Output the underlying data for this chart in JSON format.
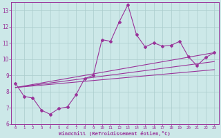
{
  "xlabel": "Windchill (Refroidissement éolien,°C)",
  "bg_color": "#cce8e8",
  "line_color": "#993399",
  "grid_color": "#aacccc",
  "axis_color": "#993399",
  "xlim": [
    -0.5,
    23.5
  ],
  "ylim": [
    6,
    13.5
  ],
  "xticks": [
    0,
    1,
    2,
    3,
    4,
    5,
    6,
    7,
    8,
    9,
    10,
    11,
    12,
    13,
    14,
    15,
    16,
    17,
    18,
    19,
    20,
    21,
    22,
    23
  ],
  "yticks": [
    6,
    7,
    8,
    9,
    10,
    11,
    12,
    13
  ],
  "main_x": [
    0,
    1,
    2,
    3,
    4,
    5,
    6,
    7,
    8,
    9,
    10,
    11,
    12,
    13,
    14,
    15,
    16,
    17,
    18,
    19,
    20,
    21,
    22,
    23
  ],
  "main_y": [
    8.5,
    7.7,
    7.6,
    6.85,
    6.6,
    6.95,
    7.05,
    7.8,
    8.8,
    9.0,
    11.2,
    11.1,
    12.3,
    13.35,
    11.5,
    10.75,
    11.0,
    10.8,
    10.85,
    11.1,
    10.15,
    9.6,
    10.1,
    10.4
  ],
  "trend1_x": [
    0,
    23
  ],
  "trend1_y": [
    8.25,
    10.4
  ],
  "trend2_x": [
    0,
    23
  ],
  "trend2_y": [
    8.25,
    9.85
  ],
  "trend3_x": [
    0,
    23
  ],
  "trend3_y": [
    8.25,
    9.35
  ]
}
